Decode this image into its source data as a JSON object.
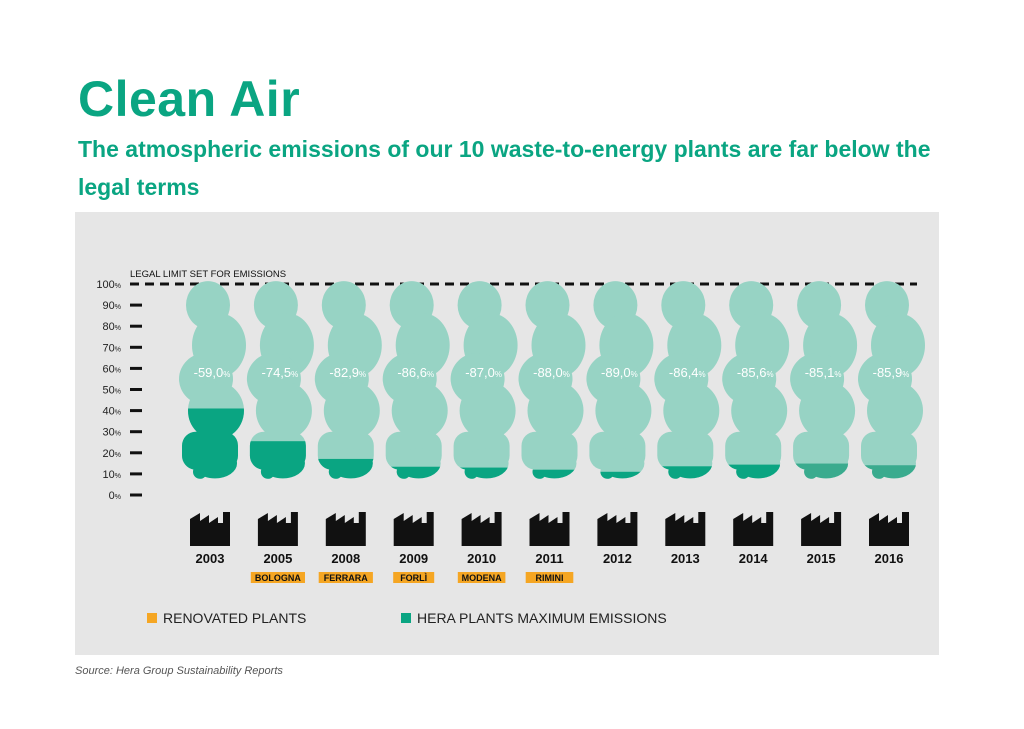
{
  "header": {
    "title": "Clean Air",
    "subtitle": "The atmospheric emissions of our 10 waste-to-energy plants are far below the legal terms"
  },
  "chart_data": {
    "type": "bar",
    "limit_label": "LEGAL LIMIT SET FOR EMISSIONS",
    "y_ticks": [
      "0",
      "10",
      "20",
      "30",
      "40",
      "50",
      "60",
      "70",
      "80",
      "90",
      "100"
    ],
    "y_unit": "%",
    "ylim": [
      0,
      100
    ],
    "categories": [
      "2003",
      "2005",
      "2008",
      "2009",
      "2010",
      "2011",
      "2012",
      "2013",
      "2014",
      "2015",
      "2016"
    ],
    "plant_labels": [
      "",
      "BOLOGNA",
      "FERRARA",
      "FORLÌ",
      "MODENA",
      "RIMINI",
      "",
      "",
      "",
      "",
      ""
    ],
    "reductions": [
      "-59,0",
      "-74,5",
      "-82,9",
      "-86,6",
      "-87,0",
      "-88,0",
      "-89,0",
      "-86,4",
      "-85,6",
      "-85,1",
      "-85,9"
    ],
    "series": [
      {
        "name": "HERA PLANTS MAXIMUM EMISSIONS",
        "values": [
          41.0,
          25.5,
          17.1,
          13.4,
          13.0,
          12.0,
          11.0,
          13.6,
          14.4,
          14.9,
          14.1
        ]
      }
    ],
    "legend": [
      {
        "label": "RENOVATED PLANTS",
        "color": "#f5a623"
      },
      {
        "label": "HERA PLANTS MAXIMUM EMISSIONS",
        "color": "#0aa582"
      }
    ],
    "legend_position": "bottom"
  },
  "colors": {
    "accent": "#0aa582",
    "cloud": "#97d3c4",
    "fill_dark": "#0aa582",
    "fill_mid": "#3aab8e",
    "highlight": "#f5a623",
    "panel": "#e6e6e6"
  },
  "icons": {
    "plant": "factory-icon"
  },
  "source": "Source: Hera Group Sustainability Reports"
}
